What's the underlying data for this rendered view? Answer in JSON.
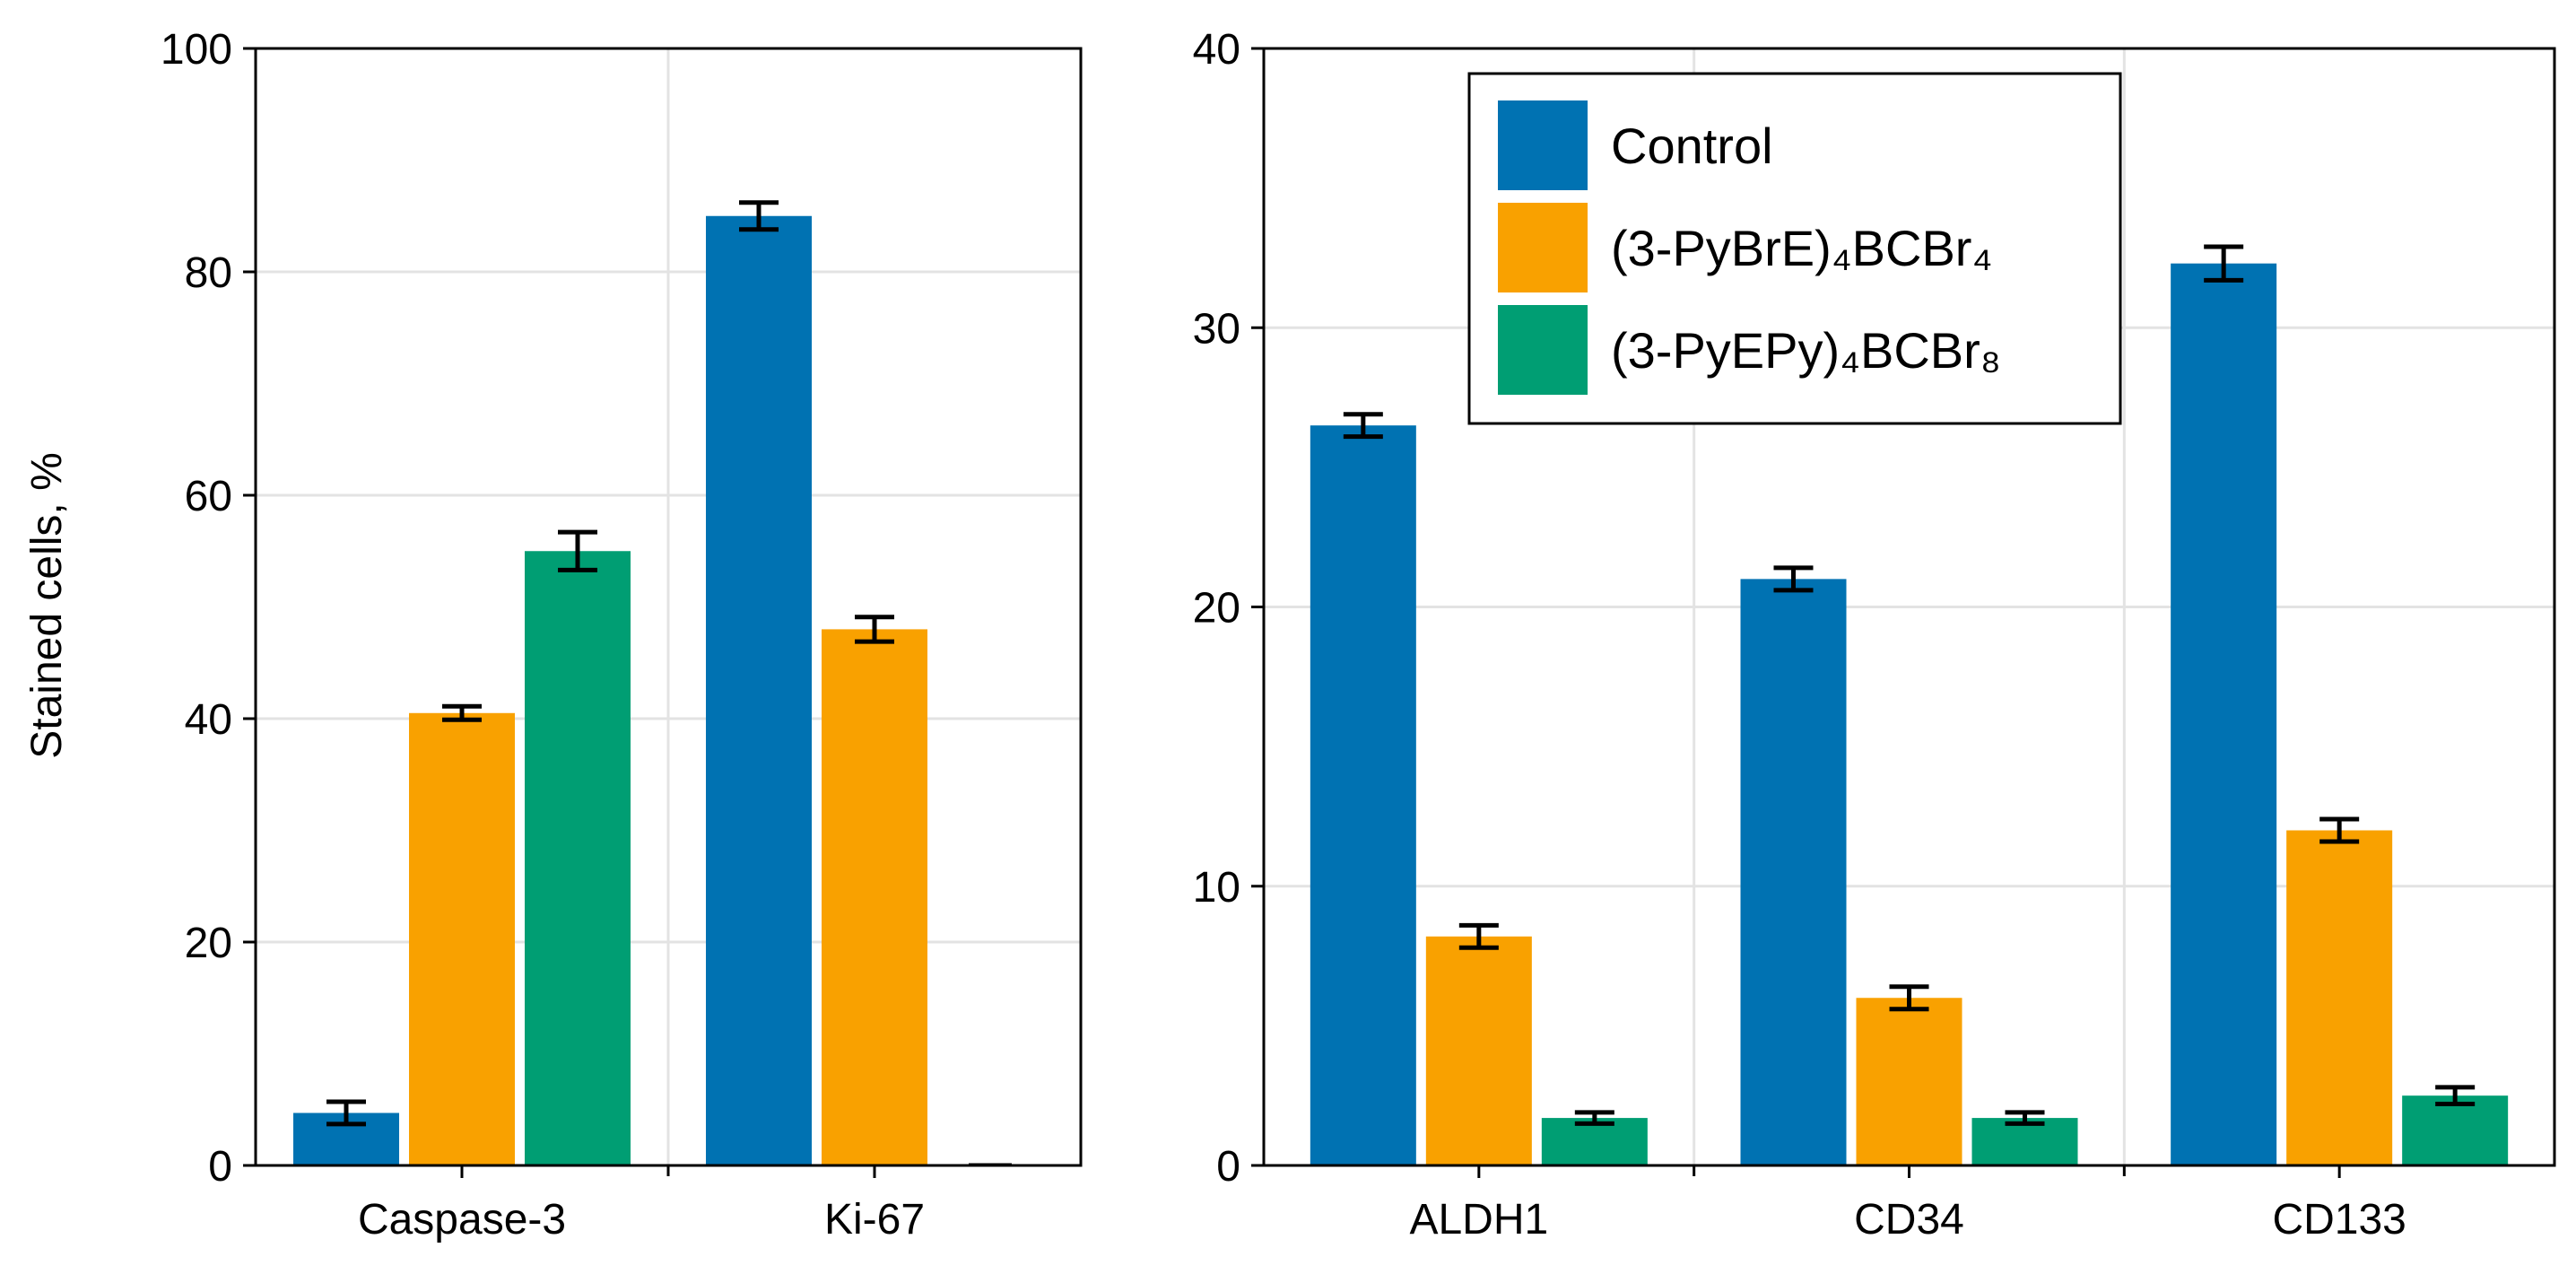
{
  "chart_data": [
    {
      "type": "bar",
      "title": "",
      "xlabel": "",
      "ylabel": "Stained cells, %",
      "ylim": [
        0,
        100
      ],
      "yticks": [
        "0",
        "20",
        "40",
        "60",
        "80",
        "100"
      ],
      "grid": true,
      "categories": [
        "Caspase-3",
        "Ki-67"
      ],
      "series": [
        {
          "name": "Control",
          "color": "#0072b2",
          "values": [
            4.7,
            85.0
          ],
          "errors": [
            1.0,
            1.2
          ]
        },
        {
          "name": "(3-PyBrE)₄BCBr₄",
          "color": "#f9a100",
          "values": [
            40.5,
            48.0
          ],
          "errors": [
            0.6,
            1.1
          ]
        },
        {
          "name": "(3-PyEPy)₄BCBr₈",
          "color": "#009e73",
          "values": [
            55.0,
            0.0
          ],
          "errors": [
            1.7,
            0.0
          ]
        }
      ]
    },
    {
      "type": "bar",
      "title": "",
      "xlabel": "",
      "ylabel": "",
      "ylim": [
        0,
        40
      ],
      "yticks": [
        "0",
        "10",
        "20",
        "30",
        "40"
      ],
      "grid": true,
      "legend_position": "top-center",
      "categories": [
        "ALDH1",
        "CD34",
        "CD133"
      ],
      "series": [
        {
          "name": "Control",
          "color": "#0072b2",
          "values": [
            26.5,
            21.0,
            32.3
          ],
          "errors": [
            0.4,
            0.4,
            0.6
          ]
        },
        {
          "name": "(3-PyBrE)₄BCBr₄",
          "color": "#f9a100",
          "values": [
            8.2,
            6.0,
            12.0
          ],
          "errors": [
            0.4,
            0.4,
            0.4
          ]
        },
        {
          "name": "(3-PyEPy)₄BCBr₈",
          "color": "#009e73",
          "values": [
            1.7,
            1.7,
            2.5
          ],
          "errors": [
            0.2,
            0.2,
            0.3
          ]
        }
      ]
    }
  ],
  "legend": {
    "items": [
      {
        "label": "Control",
        "color": "#0072b2"
      },
      {
        "label": "(3-PyBrE)₄BCBr₄",
        "color": "#f9a100"
      },
      {
        "label": "(3-PyEPy)₄BCBr₈",
        "color": "#009e73"
      }
    ]
  }
}
